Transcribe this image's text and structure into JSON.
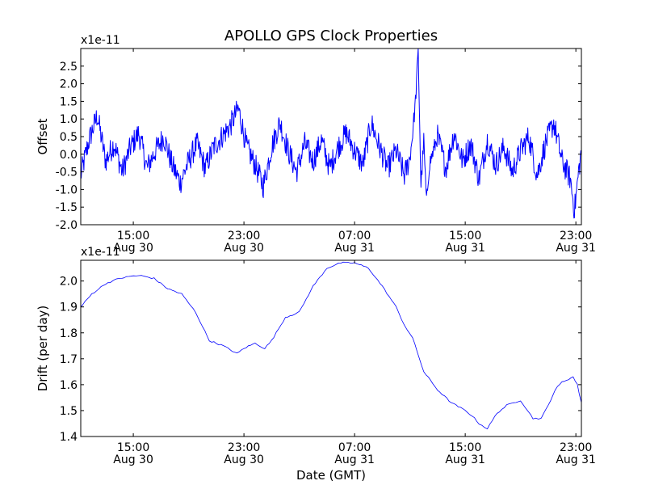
{
  "title": "APOLLO GPS Clock Properties",
  "chart_data": [
    {
      "type": "line",
      "ylabel": "Offset",
      "y_scale_label": "x1e-11",
      "ylim": [
        -2.0,
        3.0
      ],
      "yticks": [
        -2.0,
        -1.5,
        -1.0,
        -0.5,
        0.0,
        0.5,
        1.0,
        1.5,
        2.0,
        2.5
      ],
      "ytick_labels": [
        "-2.0",
        "-1.5",
        "-1.0",
        "-0.5",
        "0.0",
        "0.5",
        "1.0",
        "1.5",
        "2.0",
        "2.5"
      ],
      "xlim_hours": [
        11.2,
        47.4
      ],
      "xticks": [
        {
          "hour": 15,
          "time": "15:00",
          "date": "Aug 30"
        },
        {
          "hour": 23,
          "time": "23:00",
          "date": "Aug 30"
        },
        {
          "hour": 31,
          "time": "07:00",
          "date": "Aug 31"
        },
        {
          "hour": 39,
          "time": "15:00",
          "date": "Aug 31"
        },
        {
          "hour": 47,
          "time": "23:00",
          "date": "Aug 31"
        }
      ],
      "series": [
        {
          "color": "#0000ff",
          "x_hours": [
            11.2,
            11.8,
            12.4,
            13.0,
            13.6,
            14.2,
            14.8,
            15.4,
            16.0,
            16.6,
            17.2,
            17.8,
            18.4,
            19.0,
            19.6,
            20.2,
            20.8,
            21.4,
            22.0,
            22.6,
            23.2,
            23.8,
            24.4,
            25.0,
            25.6,
            26.2,
            26.8,
            27.4,
            28.0,
            28.6,
            29.2,
            29.8,
            30.4,
            31.0,
            31.6,
            32.2,
            32.8,
            33.4,
            34.0,
            34.6,
            35.0,
            35.2,
            35.4,
            35.6,
            35.8,
            36.0,
            36.2,
            36.4,
            37.0,
            37.6,
            38.2,
            38.8,
            39.4,
            40.0,
            40.6,
            41.2,
            41.8,
            42.4,
            43.0,
            43.6,
            44.2,
            44.8,
            45.4,
            46.0,
            46.6,
            46.9,
            47.2,
            47.4
          ],
          "y": [
            -0.6,
            0.4,
            1.1,
            -0.2,
            0.3,
            -0.5,
            0.2,
            0.6,
            -0.4,
            0.1,
            0.5,
            -0.3,
            -0.8,
            -0.2,
            0.3,
            -0.4,
            0.2,
            0.5,
            0.8,
            1.3,
            0.2,
            -0.3,
            -0.9,
            0.2,
            0.9,
            0.1,
            -0.5,
            0.3,
            -0.2,
            0.4,
            -0.4,
            0.2,
            0.6,
            0.1,
            -0.3,
            0.9,
            0.2,
            -0.4,
            0.1,
            -0.6,
            -0.1,
            0.6,
            1.5,
            2.9,
            -0.9,
            0.4,
            -1.4,
            -0.3,
            0.5,
            -0.4,
            0.6,
            -0.2,
            0.3,
            -0.7,
            0.4,
            -0.3,
            0.2,
            -0.5,
            0.1,
            0.5,
            -0.6,
            0.3,
            0.9,
            -0.2,
            -0.7,
            -1.6,
            -0.5,
            0.1
          ]
        }
      ]
    },
    {
      "type": "line",
      "ylabel": "Drift (per day)",
      "y_scale_label": "x1e-11",
      "xlabel": "Date (GMT)",
      "ylim": [
        1.4,
        2.08
      ],
      "yticks": [
        1.4,
        1.5,
        1.6,
        1.7,
        1.8,
        1.9,
        2.0
      ],
      "ytick_labels": [
        "1.4",
        "1.5",
        "1.6",
        "1.7",
        "1.8",
        "1.9",
        "2.0"
      ],
      "xlim_hours": [
        11.2,
        47.4
      ],
      "xticks": [
        {
          "hour": 15,
          "time": "15:00",
          "date": "Aug 30"
        },
        {
          "hour": 23,
          "time": "23:00",
          "date": "Aug 30"
        },
        {
          "hour": 31,
          "time": "07:00",
          "date": "Aug 31"
        },
        {
          "hour": 39,
          "time": "15:00",
          "date": "Aug 31"
        },
        {
          "hour": 47,
          "time": "23:00",
          "date": "Aug 31"
        }
      ],
      "series": [
        {
          "color": "#0000ff",
          "x_hours": [
            11.2,
            12.0,
            13.0,
            14.0,
            15.0,
            15.6,
            16.5,
            17.5,
            18.5,
            19.5,
            20.5,
            21.5,
            22.5,
            23.0,
            23.8,
            24.5,
            25.0,
            26.0,
            27.0,
            28.0,
            29.0,
            30.0,
            31.0,
            32.0,
            33.0,
            34.0,
            34.6,
            35.2,
            36.0,
            37.0,
            38.0,
            39.0,
            39.5,
            40.0,
            40.6,
            41.3,
            42.0,
            43.0,
            43.9,
            44.5,
            45.0,
            45.5,
            46.0,
            46.8,
            47.1,
            47.4
          ],
          "y": [
            1.9,
            1.95,
            1.99,
            2.01,
            2.02,
            2.02,
            2.01,
            1.97,
            1.95,
            1.88,
            1.77,
            1.75,
            1.72,
            1.74,
            1.76,
            1.74,
            1.77,
            1.86,
            1.88,
            1.98,
            2.05,
            2.07,
            2.07,
            2.05,
            1.98,
            1.9,
            1.83,
            1.78,
            1.65,
            1.58,
            1.53,
            1.5,
            1.48,
            1.45,
            1.43,
            1.49,
            1.52,
            1.54,
            1.47,
            1.47,
            1.52,
            1.58,
            1.61,
            1.63,
            1.6,
            1.53
          ]
        }
      ]
    }
  ]
}
